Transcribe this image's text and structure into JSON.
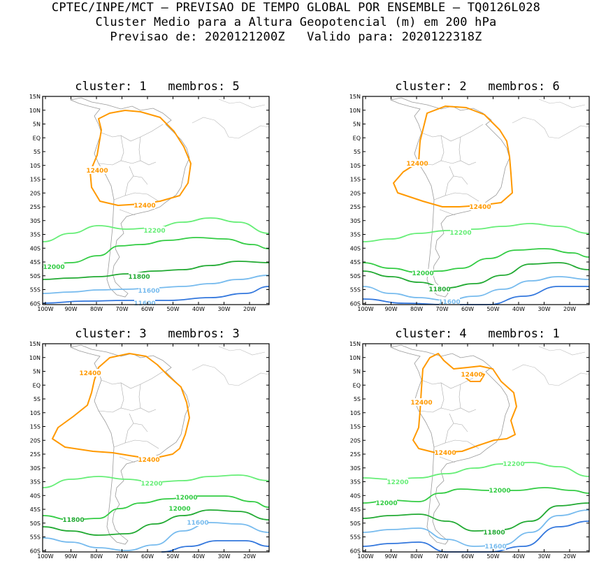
{
  "header": {
    "line1": "CPTEC/INPE/MCT – PREVISAO DE TEMPO GLOBAL POR ENSEMBLE – TQ0126L028",
    "line2": "Cluster Medio para a Altura Geopotencial (m) em 200 hPa",
    "line3": "Previsao de: 2020121200Z   Valido para: 2020122318Z"
  },
  "axes": {
    "lat_ticks": [
      "15N",
      "10N",
      "5N",
      "EQ",
      "5S",
      "10S",
      "15S",
      "20S",
      "25S",
      "30S",
      "35S",
      "40S",
      "45S",
      "50S",
      "55S",
      "60S"
    ],
    "lon_ticks": [
      "100W",
      "90W",
      "80W",
      "70W",
      "60W",
      "50W",
      "40W",
      "30W",
      "20W"
    ]
  },
  "colors": {
    "c12400": "#ff9900",
    "c12200": "#66ee77",
    "c12000": "#33cc44",
    "c11800": "#22aa33",
    "c11600": "#77bbee",
    "c11400": "#3377dd"
  },
  "panels": [
    {
      "title": "cluster: 1   membros: 5",
      "labels": [
        {
          "text": "12400",
          "color": "#ff9900"
        },
        {
          "text": "12400",
          "color": "#ff9900"
        },
        {
          "text": "12200",
          "color": "#66ee77"
        },
        {
          "text": "12000",
          "color": "#33cc44"
        },
        {
          "text": "11800",
          "color": "#22aa33"
        },
        {
          "text": "11600",
          "color": "#77bbee"
        },
        {
          "text": "11600",
          "color": "#77bbee"
        }
      ]
    },
    {
      "title": "cluster: 2   membros: 6",
      "labels": [
        {
          "text": "12400",
          "color": "#ff9900"
        },
        {
          "text": "12400",
          "color": "#ff9900"
        },
        {
          "text": "12200",
          "color": "#66ee77"
        },
        {
          "text": "12000",
          "color": "#33cc44"
        },
        {
          "text": "11800",
          "color": "#22aa33"
        },
        {
          "text": "11600",
          "color": "#77bbee"
        }
      ]
    },
    {
      "title": "cluster: 3   membros: 3",
      "labels": [
        {
          "text": "12400",
          "color": "#ff9900"
        },
        {
          "text": "12400",
          "color": "#ff9900"
        },
        {
          "text": "12200",
          "color": "#66ee77"
        },
        {
          "text": "12000",
          "color": "#33cc44"
        },
        {
          "text": "12000",
          "color": "#33cc44"
        },
        {
          "text": "11800",
          "color": "#22aa33"
        },
        {
          "text": "11600",
          "color": "#77bbee"
        }
      ]
    },
    {
      "title": "cluster: 4   membros: 1",
      "labels": [
        {
          "text": "12400",
          "color": "#ff9900"
        },
        {
          "text": "12400",
          "color": "#ff9900"
        },
        {
          "text": "12400",
          "color": "#ff9900"
        },
        {
          "text": "12200",
          "color": "#66ee77"
        },
        {
          "text": "12200",
          "color": "#66ee77"
        },
        {
          "text": "12000",
          "color": "#33cc44"
        },
        {
          "text": "12000",
          "color": "#33cc44"
        },
        {
          "text": "11800",
          "color": "#22aa33"
        },
        {
          "text": "11600",
          "color": "#77bbee"
        }
      ]
    }
  ]
}
